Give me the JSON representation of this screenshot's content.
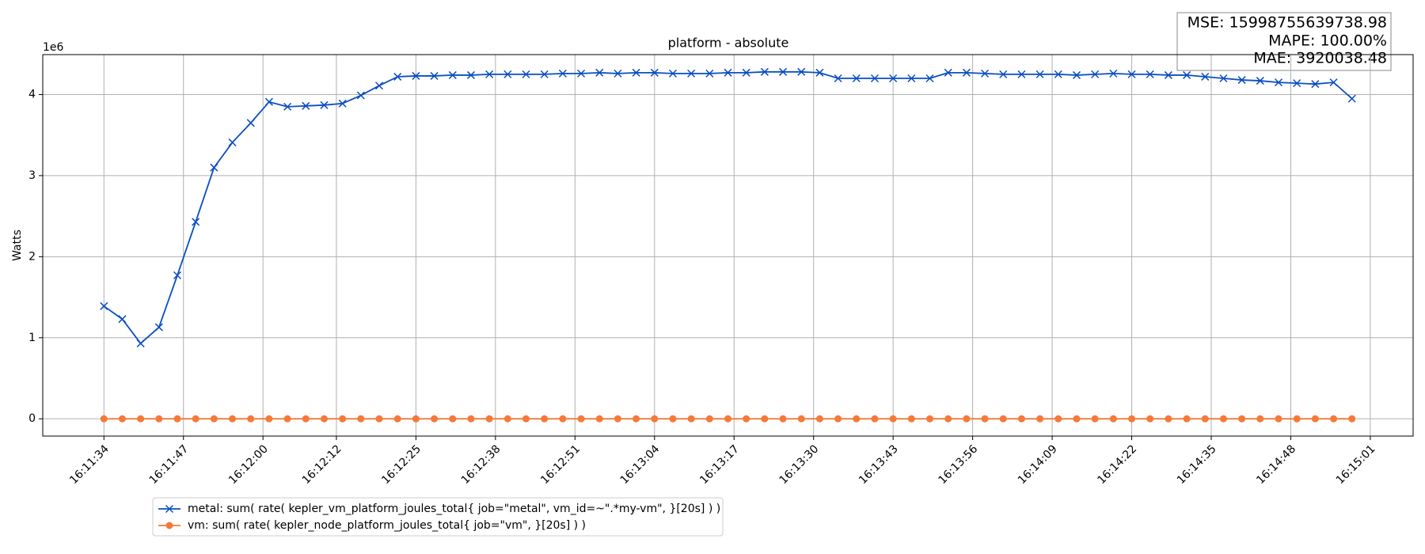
{
  "chart_data": {
    "type": "line",
    "title": "platform - absolute",
    "ylabel": "Watts",
    "y_offset_label": "1e6",
    "annotation": [
      "MSE: 15998755639738.98",
      "MAPE: 100.00%",
      "MAE: 3920038.48"
    ],
    "x": [
      "16:11:34",
      "16:11:37",
      "16:11:40",
      "16:11:43",
      "16:11:46",
      "16:11:49",
      "16:11:52",
      "16:11:55",
      "16:11:58",
      "16:12:01",
      "16:12:04",
      "16:12:07",
      "16:12:10",
      "16:12:13",
      "16:12:16",
      "16:12:19",
      "16:12:22",
      "16:12:25",
      "16:12:28",
      "16:12:31",
      "16:12:34",
      "16:12:37",
      "16:12:40",
      "16:12:43",
      "16:12:46",
      "16:12:49",
      "16:12:52",
      "16:12:55",
      "16:12:58",
      "16:13:01",
      "16:13:04",
      "16:13:07",
      "16:13:10",
      "16:13:13",
      "16:13:16",
      "16:13:19",
      "16:13:22",
      "16:13:25",
      "16:13:28",
      "16:13:31",
      "16:13:34",
      "16:13:37",
      "16:13:40",
      "16:13:43",
      "16:13:46",
      "16:13:49",
      "16:13:52",
      "16:13:55",
      "16:13:58",
      "16:14:01",
      "16:14:04",
      "16:14:07",
      "16:14:10",
      "16:14:13",
      "16:14:16",
      "16:14:19",
      "16:14:22",
      "16:14:25",
      "16:14:28",
      "16:14:31",
      "16:14:34",
      "16:14:37",
      "16:14:40",
      "16:14:43",
      "16:14:46",
      "16:14:49",
      "16:14:52",
      "16:14:55",
      "16:14:58"
    ],
    "series": [
      {
        "name": "metal: sum( rate( kepler_vm_platform_joules_total{ job=\"metal\", vm_id=~\".*my-vm\", }[20s] ) )",
        "color": "#0a4ec4",
        "marker": "x",
        "values": [
          1390000,
          1230000,
          930000,
          1130000,
          1770000,
          2430000,
          3100000,
          3410000,
          3650000,
          3910000,
          3850000,
          3860000,
          3870000,
          3890000,
          3990000,
          4110000,
          4220000,
          4230000,
          4230000,
          4240000,
          4240000,
          4250000,
          4250000,
          4250000,
          4250000,
          4260000,
          4260000,
          4270000,
          4260000,
          4270000,
          4270000,
          4260000,
          4260000,
          4260000,
          4270000,
          4270000,
          4280000,
          4280000,
          4280000,
          4270000,
          4200000,
          4200000,
          4200000,
          4200000,
          4200000,
          4200000,
          4270000,
          4270000,
          4260000,
          4250000,
          4250000,
          4250000,
          4250000,
          4240000,
          4250000,
          4260000,
          4250000,
          4250000,
          4240000,
          4240000,
          4220000,
          4200000,
          4180000,
          4170000,
          4150000,
          4140000,
          4130000,
          4150000,
          3950000
        ]
      },
      {
        "name": "vm: sum( rate( kepler_node_platform_joules_total{ job=\"vm\", }[20s] ) )",
        "color": "#f5793a",
        "marker": "o",
        "values": [
          0,
          0,
          0,
          0,
          0,
          0,
          0,
          0,
          0,
          0,
          0,
          0,
          0,
          0,
          0,
          0,
          0,
          0,
          0,
          0,
          0,
          0,
          0,
          0,
          0,
          0,
          0,
          0,
          0,
          0,
          0,
          0,
          0,
          0,
          0,
          0,
          0,
          0,
          0,
          0,
          0,
          0,
          0,
          0,
          0,
          0,
          0,
          0,
          0,
          0,
          0,
          0,
          0,
          0,
          0,
          0,
          0,
          0,
          0,
          0,
          0,
          0,
          0,
          0,
          0,
          0,
          0,
          0,
          0
        ]
      }
    ],
    "xlim": [
      "16:11:24",
      "16:15:08"
    ],
    "xticks": [
      "16:11:34",
      "16:11:47",
      "16:12:00",
      "16:12:12",
      "16:12:25",
      "16:12:38",
      "16:12:51",
      "16:13:04",
      "16:13:17",
      "16:13:30",
      "16:13:43",
      "16:13:56",
      "16:14:09",
      "16:14:22",
      "16:14:35",
      "16:14:48",
      "16:15:01"
    ],
    "ylim": [
      -213000,
      4493000
    ],
    "yticks": [
      {
        "value": 0,
        "label": "0"
      },
      {
        "value": 1000000,
        "label": "1"
      },
      {
        "value": 2000000,
        "label": "2"
      },
      {
        "value": 3000000,
        "label": "3"
      },
      {
        "value": 4000000,
        "label": "4"
      }
    ],
    "grid": true
  }
}
